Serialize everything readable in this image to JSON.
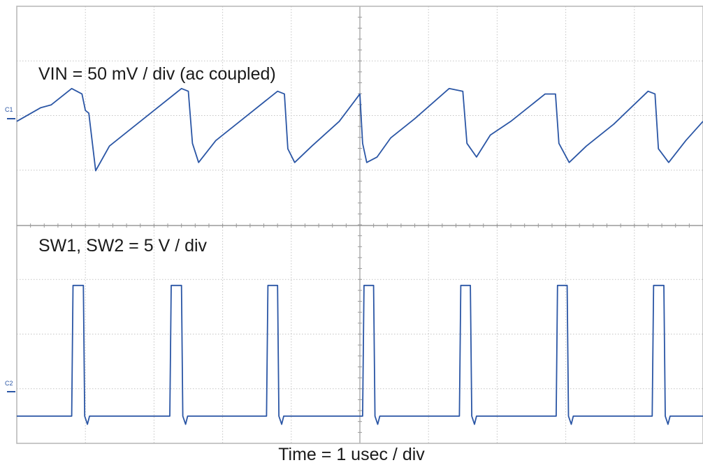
{
  "chart_data": [
    {
      "type": "line",
      "title": "",
      "annotation": "VIN = 50 mV / div (ac coupled)",
      "channel_label": "C1",
      "xlabel": "Time = 1 usec / div",
      "ylabel": "",
      "x_unit": "usec",
      "xlim": [
        0,
        10
      ],
      "ylim": [
        -2,
        2
      ],
      "grid": true,
      "color": "#2b56a5",
      "series": [
        {
          "x": [
            0,
            0.35,
            0.5,
            0.8,
            0.95,
            1.0,
            1.05,
            1.15,
            1.35,
            1.6,
            2.0,
            2.4,
            2.5,
            2.56,
            2.65,
            2.9,
            3.3,
            3.8,
            3.9,
            3.95,
            4.05,
            4.3,
            4.7,
            5.0,
            5.04,
            5.1,
            5.25,
            5.45,
            5.8,
            6.3,
            6.5,
            6.56,
            6.7,
            6.9,
            7.2,
            7.7,
            7.85,
            7.9,
            8.05,
            8.3,
            8.7,
            9.2,
            9.3,
            9.35,
            9.5,
            9.75,
            10.0
          ],
          "y": [
            -0.1,
            0.15,
            0.2,
            0.5,
            0.4,
            0.1,
            0.05,
            -1.0,
            -0.55,
            -0.3,
            0.1,
            0.5,
            0.45,
            -0.5,
            -0.85,
            -0.45,
            -0.05,
            0.45,
            0.4,
            -0.6,
            -0.85,
            -0.55,
            -0.1,
            0.4,
            -0.5,
            -0.85,
            -0.75,
            -0.4,
            -0.05,
            0.5,
            0.45,
            -0.5,
            -0.75,
            -0.35,
            -0.1,
            0.4,
            0.4,
            -0.5,
            -0.85,
            -0.55,
            -0.15,
            0.45,
            0.4,
            -0.6,
            -0.85,
            -0.45,
            -0.1
          ]
        }
      ]
    },
    {
      "type": "line",
      "title": "",
      "annotation": "SW1, SW2 = 5 V / div",
      "channel_label": "C2",
      "xlim": [
        0,
        10
      ],
      "ylim": [
        -0.5,
        3.5
      ],
      "grid": true,
      "color": "#2b56a5",
      "series": [
        {
          "x": [
            0,
            0.8,
            0.82,
            0.97,
            0.99,
            1.03,
            1.06,
            2.23,
            2.25,
            2.4,
            2.42,
            2.46,
            2.49,
            3.64,
            3.66,
            3.8,
            3.82,
            3.86,
            3.89,
            5.04,
            5.06,
            5.2,
            5.22,
            5.26,
            5.29,
            6.45,
            6.47,
            6.61,
            6.63,
            6.67,
            6.7,
            7.86,
            7.88,
            8.02,
            8.04,
            8.08,
            8.11,
            9.26,
            9.28,
            9.43,
            9.45,
            9.49,
            9.52,
            10.0
          ],
          "y": [
            0,
            0,
            2.4,
            2.4,
            0,
            -0.15,
            0,
            0,
            2.4,
            2.4,
            0,
            -0.15,
            0,
            0,
            2.4,
            2.4,
            0,
            -0.15,
            0,
            0,
            2.4,
            2.4,
            0,
            -0.15,
            0,
            0,
            2.4,
            2.4,
            0,
            -0.15,
            0,
            0,
            2.4,
            2.4,
            0,
            -0.15,
            0,
            0,
            2.4,
            2.4,
            0,
            -0.15,
            0,
            0
          ]
        }
      ]
    }
  ]
}
